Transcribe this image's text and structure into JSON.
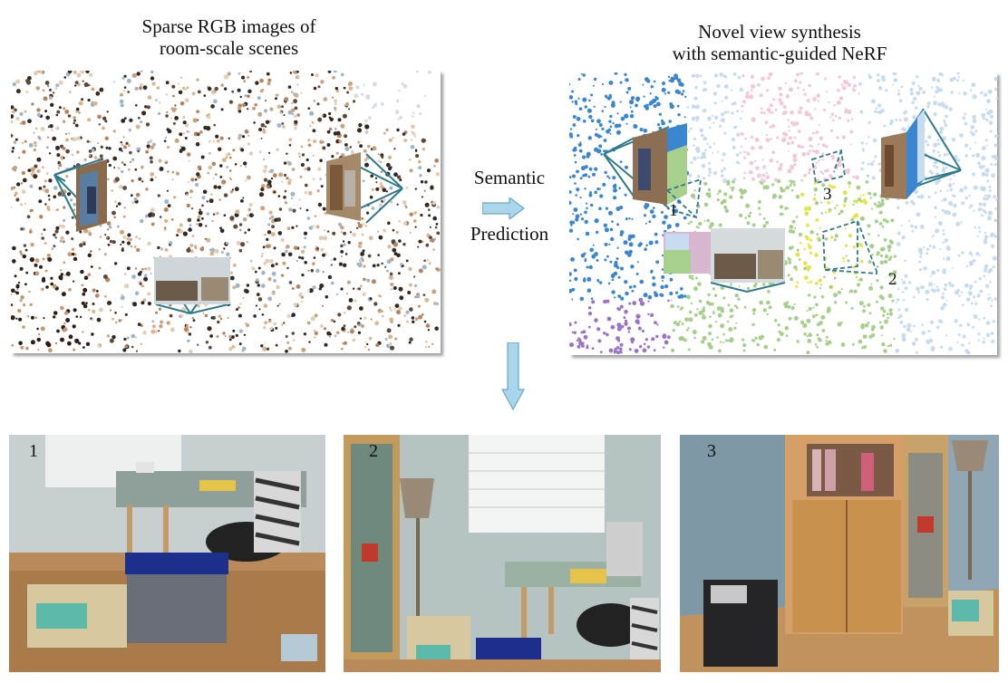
{
  "left_caption": {
    "line1": "Sparse RGB images of",
    "line2": "room-scale scenes"
  },
  "right_caption": {
    "line1": "Novel view synthesis",
    "line2": "with semantic-guided NeRF"
  },
  "arrow_text": {
    "line1": "Semantic",
    "line2": "Prediction"
  },
  "view_labels": [
    "1",
    "2",
    "3"
  ],
  "photo_labels": [
    "1",
    "2",
    "3"
  ],
  "colors": {
    "sem_blue": "#3a86d0",
    "sem_green": "#a8d08d",
    "sem_pink": "#f2c9d6",
    "sem_yellow": "#e3e54a",
    "sem_purple": "#9a74c6",
    "sem_lightblue": "#c7dcf0",
    "camera_line": "#2f7b8a",
    "arrow_fill": "#a9d6ea"
  }
}
